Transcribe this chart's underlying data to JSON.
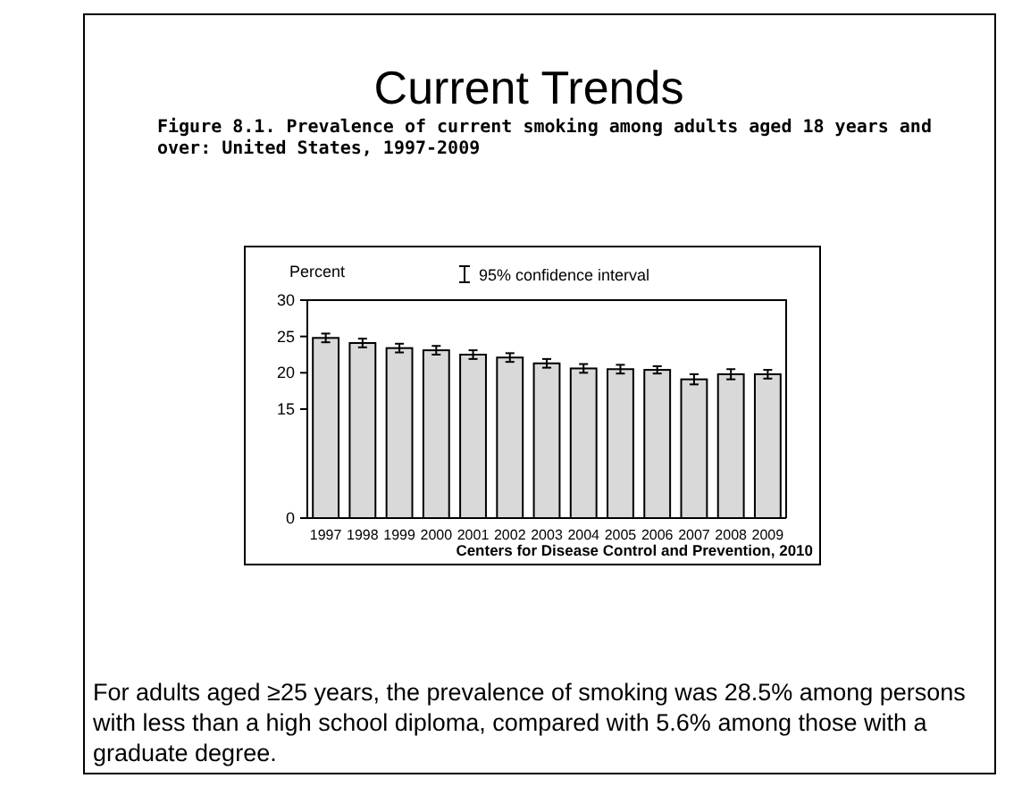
{
  "chart_data": {
    "type": "bar",
    "title": "Current Trends",
    "subtitle": "Figure 8.1. Prevalence of current smoking among adults aged 18 years and over: United States, 1997-2009",
    "ylabel": "Percent",
    "categories": [
      "1997",
      "1998",
      "1999",
      "2000",
      "2001",
      "2002",
      "2003",
      "2004",
      "2005",
      "2006",
      "2007",
      "2008",
      "2009"
    ],
    "values": [
      24.8,
      24.1,
      23.4,
      23.1,
      22.5,
      22.1,
      21.3,
      20.6,
      20.5,
      20.4,
      19.1,
      19.8,
      19.8
    ],
    "errors": [
      0.6,
      0.6,
      0.6,
      0.6,
      0.6,
      0.6,
      0.6,
      0.6,
      0.6,
      0.5,
      0.7,
      0.7,
      0.6
    ],
    "color": "#d9d9d9",
    "ylim": [
      0,
      30
    ],
    "yticks": [
      0,
      15,
      20,
      25,
      30
    ],
    "grid": false,
    "annotations": [
      "95% confidence interval",
      "Centers for Disease Control and Prevention, 2010",
      "For adults aged ≥25 years, the prevalence of smoking was 28.5% among persons with less than a high school diploma, compared with 5.6% among those with a graduate degree."
    ]
  }
}
